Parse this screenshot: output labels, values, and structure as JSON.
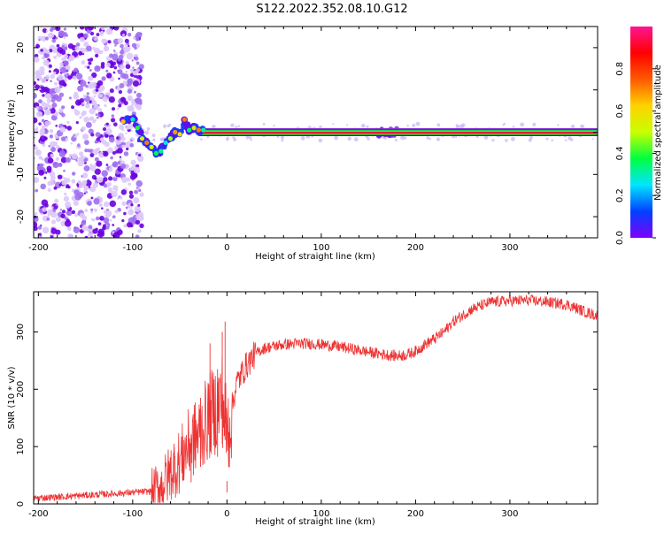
{
  "title": "S122.2022.352.08.10.G12",
  "chart_data": [
    {
      "type": "heatmap",
      "xlabel": "Height of straight line (km)",
      "ylabel": "Frequency (Hz)",
      "xlim": [
        -205,
        393
      ],
      "ylim": [
        -25,
        25
      ],
      "xticks": [
        -200,
        -100,
        0,
        100,
        200,
        300
      ],
      "yticks": [
        -20,
        -10,
        0,
        10,
        20
      ],
      "grid": false,
      "colorbar": {
        "label": "Normalized spectral amplitude",
        "range": [
          0,
          1
        ],
        "ticks": [
          0.0,
          0.2,
          0.4,
          0.6,
          0.8
        ],
        "colormap": [
          "#7f00ff",
          "#0040ff",
          "#00e5ff",
          "#00ff40",
          "#c8ff00",
          "#ffd200",
          "#ff5a00",
          "#ff0000",
          "#ff1493"
        ]
      },
      "noise_region": {
        "x": [
          -205,
          -100
        ],
        "y": [
          -25,
          25
        ]
      },
      "signal_track": [
        {
          "x": -110,
          "y": 2.5
        },
        {
          "x": -100,
          "y": 3
        },
        {
          "x": -95,
          "y": 1
        },
        {
          "x": -90,
          "y": -1.5
        },
        {
          "x": -85,
          "y": -2.5
        },
        {
          "x": -80,
          "y": -3.5
        },
        {
          "x": -75,
          "y": -5
        },
        {
          "x": -70,
          "y": -4.5
        },
        {
          "x": -65,
          "y": -2.5
        },
        {
          "x": -60,
          "y": -1.5
        },
        {
          "x": -55,
          "y": 0
        },
        {
          "x": -50,
          "y": -0.5
        },
        {
          "x": -45,
          "y": 3
        },
        {
          "x": -40,
          "y": 0.5
        },
        {
          "x": -35,
          "y": 1
        },
        {
          "x": -30,
          "y": 0.5
        },
        {
          "x": -25,
          "y": 0.5
        }
      ],
      "carrier_line": {
        "x": [
          -30,
          393
        ],
        "y": 0
      }
    },
    {
      "type": "line",
      "xlabel": "Height of straight line (km)",
      "ylabel": "SNR (10 * v/v)",
      "xlim": [
        -205,
        393
      ],
      "ylim": [
        0,
        370
      ],
      "xticks": [
        -200,
        -100,
        0,
        100,
        200,
        300
      ],
      "yticks": [
        0,
        100,
        200,
        300
      ],
      "grid": false,
      "series": [
        {
          "color": "#ee3333",
          "x": [
            -205,
            -180,
            -150,
            -120,
            -100,
            -80,
            -70,
            -60,
            -50,
            -40,
            -30,
            -20,
            -10,
            -5,
            0,
            10,
            20,
            30,
            40,
            60,
            80,
            100,
            120,
            140,
            160,
            180,
            190,
            200,
            210,
            220,
            230,
            240,
            260,
            280,
            300,
            320,
            340,
            360,
            380,
            393
          ],
          "y": [
            10,
            12,
            15,
            18,
            20,
            22,
            30,
            55,
            75,
            105,
            120,
            150,
            170,
            185,
            120,
            210,
            240,
            262,
            272,
            278,
            280,
            278,
            274,
            268,
            262,
            258,
            260,
            266,
            278,
            288,
            300,
            318,
            340,
            352,
            354,
            355,
            352,
            348,
            335,
            328
          ]
        }
      ],
      "spikes": [
        {
          "x": -56,
          "y": 105
        },
        {
          "x": -47,
          "y": 118
        },
        {
          "x": -38,
          "y": 108
        },
        {
          "x": -28,
          "y": 185
        },
        {
          "x": -18,
          "y": 280
        },
        {
          "x": -10,
          "y": 235
        },
        {
          "x": -5,
          "y": 300
        },
        {
          "x": -2,
          "y": 318
        },
        {
          "x": 0,
          "y": 40
        }
      ]
    }
  ]
}
